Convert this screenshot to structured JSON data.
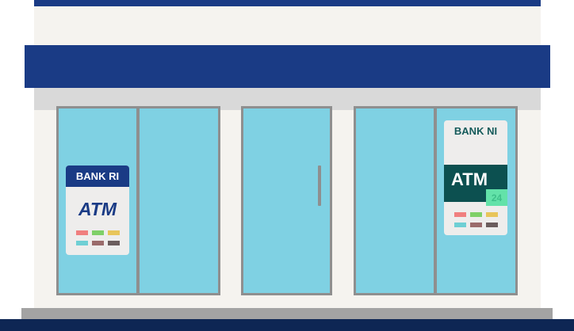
{
  "scene": {
    "left_sign": {
      "bank_label": "BANK RI",
      "atm_label": "ATM",
      "card_colors": [
        "#f07f7f",
        "#7fd068",
        "#e8c55a",
        "#6fcfd4",
        "#9a6b6b",
        "#6b5d5d"
      ]
    },
    "right_sign": {
      "bank_label": "BANK NI",
      "atm_label": "ATM",
      "hours_label": "24",
      "card_colors": [
        "#f07f7f",
        "#7fd068",
        "#e8c55a",
        "#6fcfd4",
        "#9a6b6b",
        "#6b5d5d"
      ]
    },
    "colors": {
      "brand_blue": "#1a3b85",
      "window_glass": "#7fd1e3",
      "frame_gray": "#8f8f8f",
      "wall": "#f5f3ef",
      "ground": "#0e2654",
      "teal": "#0c5050"
    }
  }
}
